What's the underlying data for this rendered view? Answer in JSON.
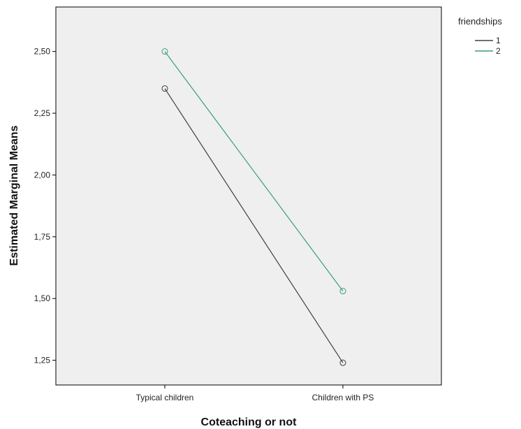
{
  "chart_data": {
    "type": "line",
    "xlabel": "Coteaching or not",
    "ylabel": "Estimated Marginal Means",
    "categories": [
      "Typical children",
      "Children with PS"
    ],
    "ylim": [
      1.15,
      2.68
    ],
    "yticks": [
      "1,25",
      "1,50",
      "1,75",
      "2,00",
      "2,25",
      "2,50"
    ],
    "ytick_values": [
      1.25,
      1.5,
      1.75,
      2.0,
      2.25,
      2.5
    ],
    "legend_title": "friendships",
    "legend_position": "top-right outside",
    "grid": false,
    "background": "#efefef",
    "series": [
      {
        "name": "1",
        "values": [
          2.35,
          1.24
        ],
        "color": "#404040"
      },
      {
        "name": "2",
        "values": [
          2.5,
          1.53
        ],
        "color": "#3a9c7e"
      }
    ]
  }
}
